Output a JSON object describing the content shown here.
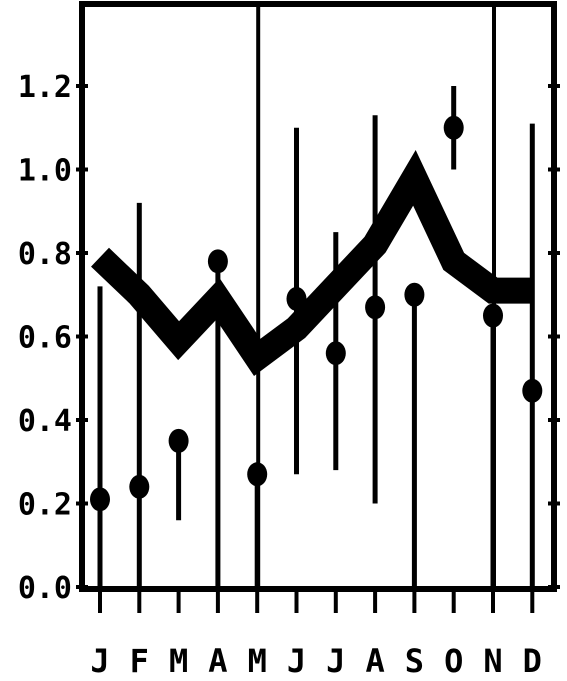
{
  "chart_data": {
    "type": "line",
    "categories": [
      "J",
      "F",
      "M",
      "A",
      "M",
      "J",
      "J",
      "A",
      "S",
      "O",
      "N",
      "D"
    ],
    "y_ticks": [
      "0.0",
      "0.2",
      "0.4",
      "0.6",
      "0.8",
      "1.0",
      "1.2"
    ],
    "ylim": [
      0,
      1.35
    ],
    "grid": false,
    "vertical_markers_after_month_index": [
      4,
      10
    ],
    "series": [
      {
        "style": "thick-line",
        "values": [
          0.79,
          0.7,
          0.59,
          0.69,
          0.55,
          0.62,
          0.72,
          0.82,
          0.98,
          0.78,
          0.71,
          0.71
        ]
      },
      {
        "style": "points-with-error-bars",
        "values": [
          0.21,
          0.24,
          0.35,
          0.78,
          0.27,
          0.69,
          0.56,
          0.67,
          0.7,
          1.1,
          0.65,
          0.47
        ],
        "err_low": [
          0.0,
          0.0,
          0.16,
          0.0,
          0.0,
          0.27,
          0.28,
          0.2,
          0.0,
          1.0,
          0.0,
          0.0
        ],
        "err_high": [
          0.72,
          0.92,
          0.0,
          0.0,
          0.0,
          1.1,
          0.85,
          1.13,
          0.0,
          1.2,
          0.0,
          1.11
        ]
      }
    ]
  }
}
